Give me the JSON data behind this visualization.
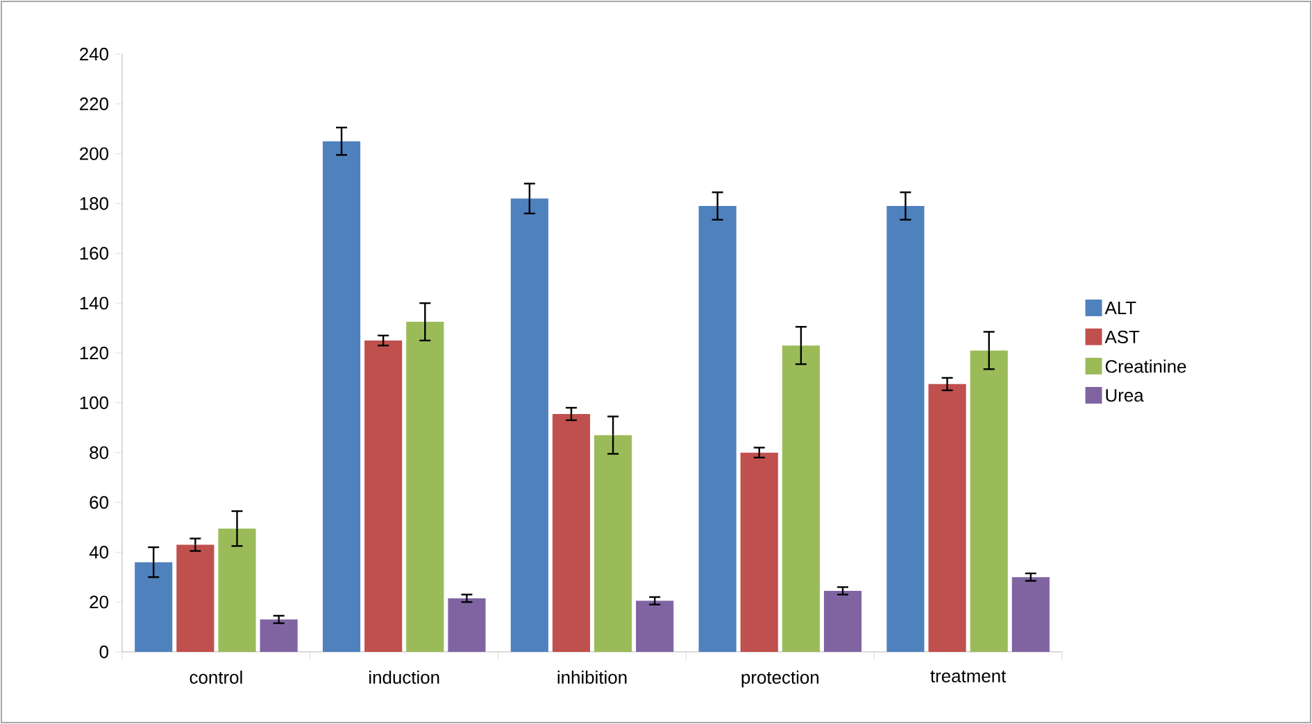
{
  "chart_data": {
    "type": "bar",
    "categories": [
      "control",
      "induction",
      "inhibition",
      "protection",
      "treatment"
    ],
    "series": [
      {
        "name": "ALT",
        "color": "#4f81bd",
        "values": [
          36,
          205,
          182,
          179,
          179
        ],
        "errors": [
          6,
          5.5,
          6,
          5.5,
          5.5
        ]
      },
      {
        "name": "AST",
        "color": "#c0504d",
        "values": [
          43,
          125,
          95.5,
          80,
          107.5
        ],
        "errors": [
          2.5,
          2,
          2.5,
          2,
          2.5
        ]
      },
      {
        "name": "Creatinine",
        "color": "#9bbb59",
        "values": [
          49.5,
          132.5,
          87,
          123,
          121
        ],
        "errors": [
          7,
          7.5,
          7.5,
          7.5,
          7.5
        ]
      },
      {
        "name": "Urea",
        "color": "#8064a2",
        "values": [
          13,
          21.5,
          20.5,
          24.5,
          30
        ],
        "errors": [
          1.5,
          1.5,
          1.5,
          1.5,
          1.5
        ]
      }
    ],
    "ylim": [
      0,
      240
    ],
    "yticks": [
      0,
      20,
      40,
      60,
      80,
      100,
      120,
      140,
      160,
      180,
      200,
      220,
      240
    ],
    "legend": "right",
    "grid": false
  }
}
